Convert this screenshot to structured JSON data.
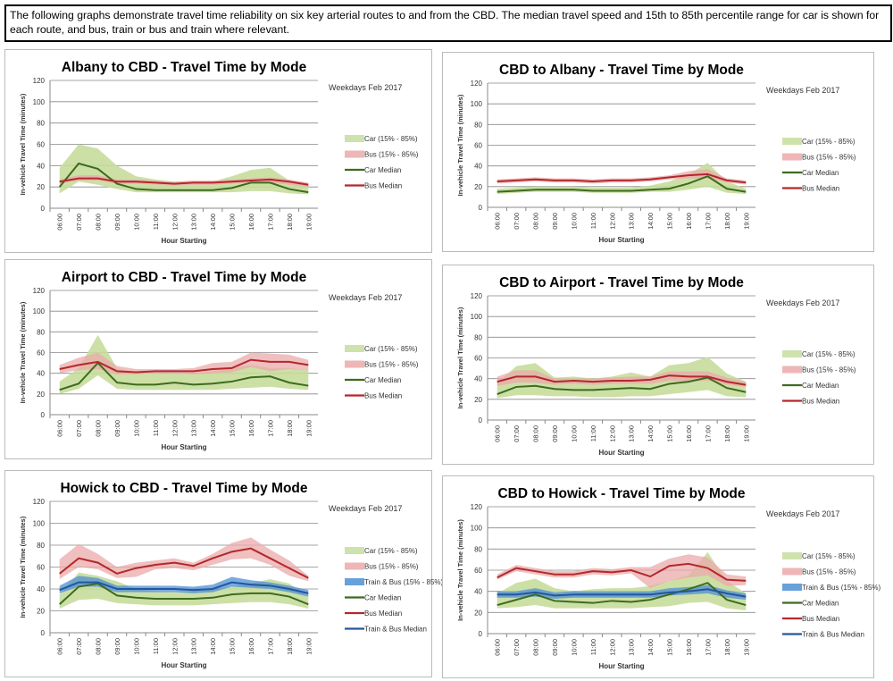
{
  "intro_text": "The following graphs demonstrate travel time reliability on six key arterial routes to and from the CBD. The median travel speed and 15th to 85th percentile range for car is shown for each route, and bus, train or bus and train where relevant.",
  "colors": {
    "car_band": "#c6dd9c",
    "bus_band": "#eba9a9",
    "train_band": "#4d8fd4",
    "car_median": "#3e6b1e",
    "bus_median": "#b3282c",
    "train_median": "#24569e"
  },
  "chart_data": [
    {
      "type": "area",
      "title": "Albany to CBD - Travel Time by Mode",
      "subtitle": "Weekdays Feb 2017",
      "xlabel": "Hour Starting",
      "ylabel": "In-vehicle Travel Time (minutes)",
      "ylim": [
        0,
        120
      ],
      "yticks": [
        "0",
        "20",
        "40",
        "60",
        "80",
        "100",
        "120"
      ],
      "grid": true,
      "legend_position": "right",
      "categories": [
        "06:00",
        "07:00",
        "08:00",
        "09:00",
        "10:00",
        "11:00",
        "12:00",
        "13:00",
        "14:00",
        "15:00",
        "16:00",
        "17:00",
        "18:00",
        "19:00"
      ],
      "bands": [
        {
          "name": "Car (15% - 85%)",
          "color_key": "car_band",
          "low": [
            14,
            25,
            22,
            18,
            15,
            15,
            15,
            15,
            15,
            15,
            16,
            16,
            14,
            13
          ],
          "high": [
            38,
            60,
            56,
            40,
            30,
            27,
            25,
            25,
            25,
            30,
            36,
            38,
            26,
            22
          ]
        },
        {
          "name": "Bus (15% - 85%)",
          "color_key": "bus_band",
          "low": [
            23,
            26,
            26,
            23,
            23,
            22,
            21,
            22,
            22,
            23,
            24,
            24,
            22,
            20
          ],
          "high": [
            27,
            31,
            31,
            27,
            27,
            26,
            25,
            26,
            26,
            27,
            28,
            29,
            27,
            24
          ]
        }
      ],
      "lines": [
        {
          "name": "Car Median",
          "color_key": "car_median",
          "values": [
            20,
            42,
            37,
            23,
            18,
            17,
            17,
            17,
            17,
            19,
            24,
            24,
            18,
            15
          ]
        },
        {
          "name": "Bus Median",
          "color_key": "bus_median",
          "values": [
            25,
            28,
            28,
            25,
            25,
            24,
            23,
            24,
            24,
            25,
            26,
            27,
            25,
            22
          ]
        }
      ]
    },
    {
      "type": "area",
      "title": "CBD to Albany - Travel Time by Mode",
      "subtitle": "Weekdays Feb 2017",
      "xlabel": "Hour Starting",
      "ylabel": "In-vehicle Travel Time (minutes)",
      "ylim": [
        0,
        120
      ],
      "yticks": [
        "0",
        "20",
        "40",
        "60",
        "80",
        "100",
        "120"
      ],
      "grid": true,
      "legend_position": "right",
      "categories": [
        "06:00",
        "07:00",
        "08:00",
        "09:00",
        "10:00",
        "11:00",
        "12:00",
        "13:00",
        "14:00",
        "15:00",
        "16:00",
        "17:00",
        "18:00",
        "19:00"
      ],
      "bands": [
        {
          "name": "Car (15% - 85%)",
          "color_key": "car_band",
          "low": [
            13,
            14,
            15,
            15,
            15,
            14,
            14,
            14,
            15,
            15,
            17,
            20,
            14,
            13
          ],
          "high": [
            18,
            19,
            20,
            20,
            20,
            19,
            19,
            19,
            21,
            25,
            32,
            43,
            25,
            18
          ]
        },
        {
          "name": "Bus (15% - 85%)",
          "color_key": "bus_band",
          "low": [
            23,
            24,
            25,
            24,
            24,
            23,
            24,
            24,
            25,
            27,
            28,
            28,
            24,
            22
          ],
          "high": [
            27,
            28,
            29,
            28,
            28,
            27,
            28,
            28,
            29,
            31,
            35,
            37,
            28,
            26
          ]
        }
      ],
      "lines": [
        {
          "name": "Car Median",
          "color_key": "car_median",
          "values": [
            15,
            16,
            17,
            17,
            17,
            16,
            16,
            16,
            17,
            18,
            23,
            30,
            18,
            15
          ]
        },
        {
          "name": "Bus Median",
          "color_key": "bus_median",
          "values": [
            25,
            26,
            27,
            26,
            26,
            25,
            26,
            26,
            27,
            29,
            31,
            32,
            26,
            24
          ]
        }
      ]
    },
    {
      "type": "area",
      "title": "Airport to CBD - Travel Time by Mode",
      "subtitle": "Weekdays Feb 2017",
      "xlabel": "Hour Starting",
      "ylabel": "In-vehicle Travel Time (minutes)",
      "ylim": [
        0,
        120
      ],
      "yticks": [
        "0",
        "20",
        "40",
        "60",
        "80",
        "100",
        "120"
      ],
      "grid": true,
      "legend_position": "right",
      "categories": [
        "06:00",
        "07:00",
        "08:00",
        "09:00",
        "10:00",
        "11:00",
        "12:00",
        "13:00",
        "14:00",
        "15:00",
        "16:00",
        "17:00",
        "18:00",
        "19:00"
      ],
      "bands": [
        {
          "name": "Car (15% - 85%)",
          "color_key": "car_band",
          "low": [
            20,
            25,
            38,
            25,
            24,
            24,
            24,
            24,
            24,
            25,
            26,
            27,
            25,
            24
          ],
          "high": [
            32,
            45,
            77,
            45,
            40,
            40,
            40,
            40,
            42,
            45,
            48,
            45,
            45,
            43
          ]
        },
        {
          "name": "Bus (15% - 85%)",
          "color_key": "bus_band",
          "low": [
            40,
            43,
            44,
            39,
            39,
            40,
            40,
            39,
            40,
            41,
            46,
            42,
            44,
            43
          ],
          "high": [
            48,
            55,
            60,
            47,
            44,
            44,
            44,
            45,
            50,
            51,
            60,
            59,
            58,
            53
          ]
        }
      ],
      "lines": [
        {
          "name": "Car Median",
          "color_key": "car_median",
          "values": [
            24,
            30,
            50,
            31,
            29,
            29,
            31,
            29,
            30,
            32,
            36,
            37,
            31,
            28
          ]
        },
        {
          "name": "Bus Median",
          "color_key": "bus_median",
          "values": [
            44,
            48,
            51,
            42,
            41,
            42,
            42,
            42,
            44,
            45,
            53,
            51,
            51,
            48
          ]
        }
      ]
    },
    {
      "type": "area",
      "title": "CBD to Airport - Travel Time by Mode",
      "subtitle": "Weekdays Feb 2017",
      "xlabel": "Hour Starting",
      "ylabel": "In-vehicle Travel Time (minutes)",
      "ylim": [
        0,
        120
      ],
      "yticks": [
        "0",
        "20",
        "40",
        "60",
        "80",
        "100",
        "120"
      ],
      "grid": true,
      "legend_position": "right",
      "categories": [
        "06:00",
        "07:00",
        "08:00",
        "09:00",
        "10:00",
        "11:00",
        "12:00",
        "13:00",
        "14:00",
        "15:00",
        "16:00",
        "17:00",
        "18:00",
        "19:00"
      ],
      "bands": [
        {
          "name": "Car (15% - 85%)",
          "color_key": "car_band",
          "low": [
            21,
            24,
            24,
            23,
            23,
            22,
            22,
            23,
            23,
            25,
            27,
            29,
            23,
            22
          ],
          "high": [
            36,
            52,
            55,
            41,
            42,
            40,
            42,
            46,
            42,
            53,
            55,
            61,
            45,
            37
          ]
        },
        {
          "name": "Bus (15% - 85%)",
          "color_key": "bus_band",
          "low": [
            33,
            36,
            36,
            34,
            35,
            34,
            35,
            35,
            35,
            38,
            37,
            38,
            34,
            32
          ],
          "high": [
            42,
            48,
            48,
            40,
            40,
            40,
            41,
            42,
            42,
            47,
            47,
            47,
            41,
            37
          ]
        }
      ],
      "lines": [
        {
          "name": "Car Median",
          "color_key": "car_median",
          "values": [
            25,
            32,
            33,
            30,
            29,
            29,
            30,
            31,
            30,
            35,
            37,
            41,
            31,
            27
          ]
        },
        {
          "name": "Bus Median",
          "color_key": "bus_median",
          "values": [
            37,
            42,
            42,
            37,
            38,
            37,
            38,
            38,
            39,
            43,
            42,
            42,
            37,
            34
          ]
        }
      ]
    },
    {
      "type": "area",
      "title": "Howick to CBD - Travel Time by Mode",
      "subtitle": "Weekdays Feb 2017",
      "xlabel": "Hour Starting",
      "ylabel": "In-vehicle Travel Time (minutes)",
      "ylim": [
        0,
        120
      ],
      "yticks": [
        "0",
        "20",
        "40",
        "60",
        "80",
        "100",
        "120"
      ],
      "grid": true,
      "legend_position": "right",
      "categories": [
        "06:00",
        "07:00",
        "08:00",
        "09:00",
        "10:00",
        "11:00",
        "12:00",
        "13:00",
        "14:00",
        "15:00",
        "16:00",
        "17:00",
        "18:00",
        "19:00"
      ],
      "bands": [
        {
          "name": "Car (15% - 85%)",
          "color_key": "car_band",
          "low": [
            22,
            30,
            31,
            27,
            26,
            25,
            25,
            25,
            26,
            27,
            28,
            28,
            26,
            22
          ],
          "high": [
            35,
            55,
            52,
            47,
            40,
            38,
            37,
            38,
            39,
            42,
            45,
            49,
            45,
            33
          ]
        },
        {
          "name": "Bus (15% - 85%)",
          "color_key": "bus_band",
          "low": [
            49,
            60,
            58,
            50,
            51,
            58,
            59,
            57,
            62,
            67,
            68,
            62,
            52,
            47
          ],
          "high": [
            67,
            81,
            72,
            60,
            64,
            66,
            68,
            64,
            72,
            82,
            87,
            76,
            66,
            52
          ]
        },
        {
          "name": "Train & Bus (15% - 85%)",
          "color_key": "train_band",
          "low": [
            36,
            42,
            42,
            37,
            37,
            37,
            37,
            36,
            37,
            42,
            41,
            40,
            37,
            33
          ],
          "high": [
            43,
            52,
            50,
            43,
            43,
            43,
            43,
            42,
            44,
            51,
            48,
            46,
            43,
            39
          ]
        }
      ],
      "lines": [
        {
          "name": "Car Median",
          "color_key": "car_median",
          "values": [
            26,
            42,
            45,
            34,
            32,
            31,
            31,
            31,
            32,
            35,
            36,
            36,
            33,
            26
          ]
        },
        {
          "name": "Bus Median",
          "color_key": "bus_median",
          "values": [
            54,
            68,
            64,
            54,
            59,
            62,
            64,
            61,
            68,
            74,
            77,
            68,
            59,
            50
          ]
        },
        {
          "name": "Train & Bus Median",
          "color_key": "train_median",
          "values": [
            39,
            46,
            46,
            40,
            40,
            40,
            40,
            39,
            40,
            46,
            44,
            43,
            40,
            36
          ]
        }
      ]
    },
    {
      "type": "area",
      "title": "CBD to Howick - Travel Time by Mode",
      "subtitle": "Weekdays Feb 2017",
      "xlabel": "Hour Starting",
      "ylabel": "In-vehicle Travel Time (minutes)",
      "ylim": [
        0,
        120
      ],
      "yticks": [
        "0",
        "20",
        "40",
        "60",
        "80",
        "100",
        "120"
      ],
      "grid": true,
      "legend_position": "right",
      "categories": [
        "06:00",
        "07:00",
        "08:00",
        "09:00",
        "10:00",
        "11:00",
        "12:00",
        "13:00",
        "14:00",
        "15:00",
        "16:00",
        "17:00",
        "18:00",
        "19:00"
      ],
      "bands": [
        {
          "name": "Car (15% - 85%)",
          "color_key": "car_band",
          "low": [
            24,
            25,
            27,
            24,
            24,
            24,
            24,
            24,
            25,
            26,
            29,
            30,
            24,
            22
          ],
          "high": [
            38,
            48,
            52,
            43,
            40,
            42,
            43,
            43,
            45,
            50,
            55,
            77,
            50,
            38
          ]
        },
        {
          "name": "Bus (15% - 85%)",
          "color_key": "bus_band",
          "low": [
            51,
            59,
            56,
            53,
            53,
            56,
            55,
            57,
            43,
            50,
            53,
            55,
            45,
            46
          ],
          "high": [
            56,
            65,
            62,
            59,
            59,
            62,
            61,
            63,
            63,
            71,
            75,
            72,
            56,
            54
          ]
        },
        {
          "name": "Train & Bus (15% - 85%)",
          "color_key": "train_band",
          "low": [
            34,
            34,
            35,
            33,
            34,
            34,
            34,
            34,
            34,
            36,
            37,
            38,
            34,
            32
          ],
          "high": [
            40,
            40,
            43,
            39,
            40,
            40,
            40,
            40,
            40,
            43,
            44,
            46,
            41,
            38
          ]
        }
      ],
      "lines": [
        {
          "name": "Car Median",
          "color_key": "car_median",
          "values": [
            27,
            32,
            37,
            31,
            30,
            29,
            31,
            30,
            32,
            37,
            42,
            48,
            32,
            27
          ]
        },
        {
          "name": "Bus Median",
          "color_key": "bus_median",
          "values": [
            53,
            62,
            59,
            56,
            56,
            59,
            58,
            60,
            54,
            64,
            66,
            62,
            51,
            50
          ]
        },
        {
          "name": "Train & Bus Median",
          "color_key": "train_median",
          "values": [
            37,
            37,
            39,
            36,
            37,
            37,
            37,
            37,
            37,
            39,
            40,
            42,
            38,
            35
          ]
        }
      ]
    }
  ]
}
